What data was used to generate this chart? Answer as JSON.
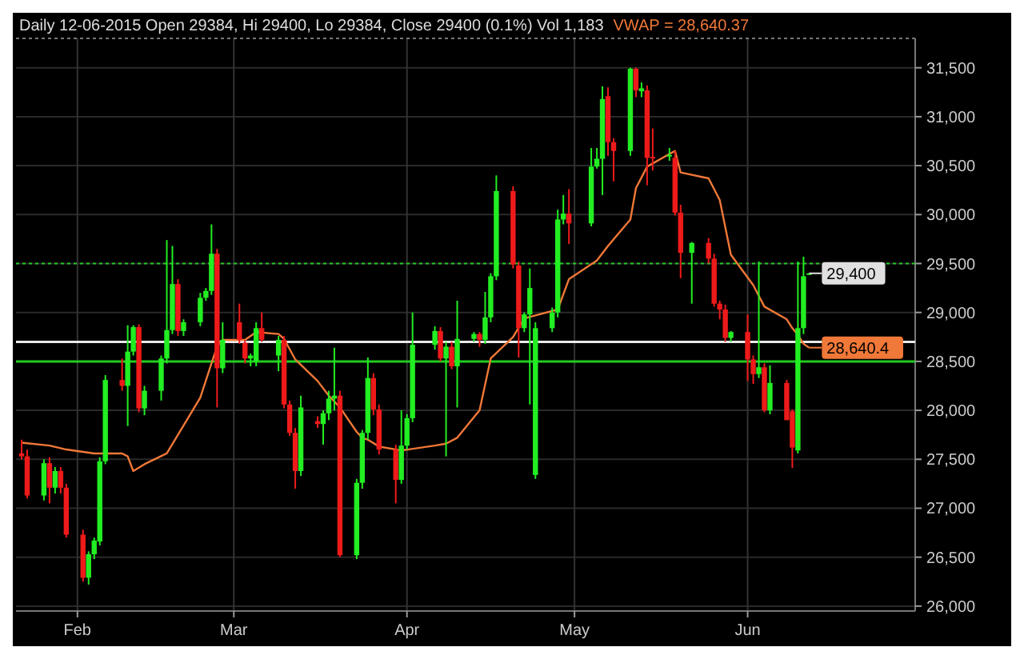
{
  "chart_data": {
    "type": "candlestick",
    "title": "Daily 12-06-2015 Open 29384, Hi 29400, Lo 29384, Close 29400 (0.1%) Vol 1,183",
    "x": [
      "2015-01-22",
      "2015-01-23",
      "2015-01-26",
      "2015-01-27",
      "2015-01-28",
      "2015-01-29",
      "2015-01-30",
      "2015-02-02",
      "2015-02-03",
      "2015-02-04",
      "2015-02-05",
      "2015-02-06",
      "2015-02-09",
      "2015-02-10",
      "2015-02-11",
      "2015-02-12",
      "2015-02-13",
      "2015-02-16",
      "2015-02-17",
      "2015-02-18",
      "2015-02-19",
      "2015-02-20",
      "2015-02-23",
      "2015-02-24",
      "2015-02-25",
      "2015-02-26",
      "2015-02-27",
      "2015-03-02",
      "2015-03-03",
      "2015-03-04",
      "2015-03-05",
      "2015-03-06",
      "2015-03-09",
      "2015-03-10",
      "2015-03-11",
      "2015-03-12",
      "2015-03-13",
      "2015-03-16",
      "2015-03-17",
      "2015-03-18",
      "2015-03-19",
      "2015-03-20",
      "2015-03-23",
      "2015-03-24",
      "2015-03-25",
      "2015-03-26",
      "2015-03-27",
      "2015-03-30",
      "2015-03-31",
      "2015-04-01",
      "2015-04-02",
      "2015-04-06",
      "2015-04-07",
      "2015-04-08",
      "2015-04-09",
      "2015-04-10",
      "2015-04-13",
      "2015-04-14",
      "2015-04-15",
      "2015-04-16",
      "2015-04-17",
      "2015-04-20",
      "2015-04-21",
      "2015-04-22",
      "2015-04-23",
      "2015-04-24",
      "2015-04-27",
      "2015-04-28",
      "2015-04-29",
      "2015-04-30",
      "2015-05-04",
      "2015-05-05",
      "2015-05-06",
      "2015-05-07",
      "2015-05-08",
      "2015-05-11",
      "2015-05-12",
      "2015-05-13",
      "2015-05-14",
      "2015-05-15",
      "2015-05-18",
      "2015-05-19",
      "2015-05-20",
      "2015-05-22",
      "2015-05-25",
      "2015-05-26",
      "2015-05-27",
      "2015-05-28",
      "2015-05-29",
      "2015-06-01",
      "2015-06-02",
      "2015-06-03",
      "2015-06-04",
      "2015-06-05",
      "2015-06-08",
      "2015-06-09",
      "2015-06-10",
      "2015-06-11",
      "2015-06-12"
    ],
    "ohlc": [
      [
        27560,
        27700,
        27500,
        27530
      ],
      [
        27530,
        27600,
        27100,
        27130
      ],
      [
        27130,
        27500,
        27080,
        27460
      ],
      [
        27460,
        27520,
        27050,
        27210
      ],
      [
        27210,
        27420,
        27150,
        27380
      ],
      [
        27380,
        27420,
        27150,
        27210
      ],
      [
        27210,
        27250,
        26700,
        26730
      ],
      [
        26730,
        26780,
        26250,
        26290
      ],
      [
        26290,
        26560,
        26220,
        26530
      ],
      [
        26530,
        26700,
        26480,
        26670
      ],
      [
        26660,
        27520,
        26620,
        27480
      ],
      [
        27480,
        28360,
        27450,
        28310
      ],
      [
        28310,
        28530,
        28200,
        28250
      ],
      [
        28250,
        28870,
        27840,
        28600
      ],
      [
        28600,
        28870,
        28560,
        28850
      ],
      [
        28850,
        28880,
        27980,
        28020
      ],
      [
        28020,
        28250,
        27950,
        28200
      ],
      [
        28200,
        28560,
        28100,
        28530
      ],
      [
        28530,
        29740,
        28480,
        28820
      ],
      [
        28820,
        29680,
        28780,
        29290
      ],
      [
        29290,
        29340,
        28760,
        28810
      ],
      [
        28810,
        28930,
        28760,
        28900
      ],
      [
        28900,
        29200,
        28860,
        29150
      ],
      [
        29150,
        29250,
        29120,
        29220
      ],
      [
        29220,
        29900,
        29180,
        29600
      ],
      [
        29600,
        29650,
        28030,
        28430
      ],
      [
        28430,
        28900,
        28380,
        28720
      ],
      [
        28900,
        29090,
        28680,
        28720
      ],
      [
        28690,
        28720,
        28480,
        28530
      ],
      [
        28530,
        28580,
        28450,
        28560
      ],
      [
        28500,
        28900,
        28450,
        28840
      ],
      [
        28840,
        29000,
        28700,
        28720
      ],
      [
        28560,
        28760,
        28400,
        28720
      ],
      [
        28720,
        28760,
        28020,
        28060
      ],
      [
        28060,
        28100,
        27740,
        27770
      ],
      [
        27770,
        27820,
        27200,
        27380
      ],
      [
        27380,
        28150,
        27330,
        28030
      ],
      [
        27890,
        27940,
        27820,
        27860
      ],
      [
        27860,
        28000,
        27650,
        27970
      ],
      [
        27970,
        28200,
        27900,
        28120
      ],
      [
        28120,
        28640,
        28000,
        28150
      ],
      [
        28150,
        28200,
        26500,
        26520
      ],
      [
        26520,
        27300,
        26480,
        27260
      ],
      [
        27260,
        27800,
        27200,
        27770
      ],
      [
        27770,
        28540,
        27700,
        28330
      ],
      [
        28330,
        28380,
        27950,
        28010
      ],
      [
        28010,
        28060,
        27550,
        27600
      ],
      [
        27600,
        27650,
        27050,
        27290
      ],
      [
        27290,
        28000,
        27250,
        27640
      ],
      [
        27640,
        27960,
        27600,
        27920
      ],
      [
        27920,
        29000,
        27880,
        28670
      ],
      [
        28670,
        28860,
        28620,
        28810
      ],
      [
        28810,
        28850,
        28500,
        28530
      ],
      [
        28530,
        28700,
        27530,
        28650
      ],
      [
        28650,
        28700,
        28420,
        28450
      ],
      [
        28450,
        29120,
        28030,
        28730
      ],
      [
        28730,
        28800,
        28700,
        28780
      ],
      [
        28780,
        28800,
        28650,
        28720
      ],
      [
        28720,
        29210,
        28680,
        28950
      ],
      [
        28950,
        29400,
        28900,
        29370
      ],
      [
        29370,
        30400,
        29330,
        30240
      ],
      [
        30240,
        30290,
        29450,
        29490
      ],
      [
        29480,
        29520,
        28540,
        28840
      ],
      [
        28840,
        29000,
        28800,
        28980
      ],
      [
        28980,
        29450,
        28060,
        29250
      ],
      [
        27340,
        28900,
        27300,
        28840
      ],
      [
        28840,
        29050,
        28800,
        29000
      ],
      [
        29000,
        30050,
        28950,
        29950
      ],
      [
        29950,
        30200,
        29900,
        30010
      ],
      [
        30010,
        30260,
        29700,
        29910
      ],
      [
        29910,
        30680,
        29880,
        30490
      ],
      [
        30490,
        30680,
        30470,
        30570
      ],
      [
        30570,
        31310,
        30200,
        31180
      ],
      [
        31210,
        31300,
        30600,
        30740
      ],
      [
        30740,
        30780,
        30340,
        30650
      ],
      [
        30650,
        31500,
        30600,
        31490
      ],
      [
        31490,
        31500,
        31200,
        31270
      ],
      [
        31260,
        31350,
        31200,
        31290
      ],
      [
        31270,
        31320,
        30300,
        30580
      ],
      [
        30590,
        30880,
        30450,
        30580
      ],
      [
        30600,
        30680,
        30550,
        30610
      ],
      [
        30580,
        30650,
        29990,
        30020
      ],
      [
        30020,
        30100,
        29350,
        29610
      ],
      [
        29610,
        29720,
        29090,
        29710
      ],
      [
        29710,
        29760,
        29500,
        29550
      ],
      [
        29550,
        29600,
        29060,
        29090
      ],
      [
        29090,
        29120,
        28930,
        29030
      ],
      [
        29030,
        29080,
        28700,
        28740
      ],
      [
        28740,
        28810,
        28700,
        28800
      ],
      [
        28800,
        28980,
        28300,
        28520
      ],
      [
        28520,
        28560,
        28270,
        28370
      ],
      [
        28370,
        29520,
        28330,
        28440
      ],
      [
        28440,
        28480,
        27980,
        28000
      ],
      [
        28000,
        28460,
        27960,
        28280
      ],
      [
        28280,
        28310,
        27900,
        27900
      ],
      [
        27990,
        28010,
        27410,
        27620
      ],
      [
        27590,
        29520,
        27560,
        28840
      ],
      [
        28840,
        29570,
        28780,
        29370
      ],
      [
        29384,
        29400,
        29384,
        29400
      ]
    ],
    "series": [
      {
        "type": "line",
        "name": "VWAP = 28,640.37",
        "color": "#f07838",
        "x": [
          "2015-01-22",
          "2015-01-27",
          "2015-01-30",
          "2015-02-04",
          "2015-02-09",
          "2015-02-10",
          "2015-02-11",
          "2015-02-13",
          "2015-02-17",
          "2015-02-19",
          "2015-02-23",
          "2015-02-25",
          "2015-02-26",
          "2015-02-27",
          "2015-03-03",
          "2015-03-05",
          "2015-03-09",
          "2015-03-10",
          "2015-03-12",
          "2015-03-16",
          "2015-03-18",
          "2015-03-20",
          "2015-03-23",
          "2015-03-24",
          "2015-03-25",
          "2015-03-27",
          "2015-03-31",
          "2015-04-06",
          "2015-04-08",
          "2015-04-10",
          "2015-04-14",
          "2015-04-16",
          "2015-04-20",
          "2015-04-22",
          "2015-04-24",
          "2015-04-28",
          "2015-04-30",
          "2015-05-05",
          "2015-05-07",
          "2015-05-11",
          "2015-05-12",
          "2015-05-14",
          "2015-05-18",
          "2015-05-19",
          "2015-05-20",
          "2015-05-25",
          "2015-05-27",
          "2015-05-29",
          "2015-06-02",
          "2015-06-04",
          "2015-06-08",
          "2015-06-09",
          "2015-06-10",
          "2015-06-11",
          "2015-06-12"
        ],
        "values": [
          27670,
          27640,
          27600,
          27560,
          27560,
          27530,
          27380,
          27450,
          27560,
          27750,
          28130,
          28480,
          28650,
          28720,
          28720,
          28800,
          28780,
          28730,
          28520,
          28300,
          28150,
          28030,
          27780,
          27720,
          27700,
          27630,
          27590,
          27640,
          27660,
          27720,
          28000,
          28530,
          28750,
          28940,
          28970,
          29030,
          29340,
          29530,
          29680,
          29950,
          30270,
          30490,
          30620,
          30650,
          30430,
          30370,
          30150,
          29590,
          29280,
          29060,
          28930,
          28840,
          28770,
          28680,
          28640
        ]
      }
    ],
    "xlim": [
      "2015-01-21",
      "2015-07-01"
    ],
    "xticks": [
      {
        "value": "2015-02-01",
        "label": "Feb"
      },
      {
        "value": "2015-03-01",
        "label": "Mar"
      },
      {
        "value": "2015-04-01",
        "label": "Apr"
      },
      {
        "value": "2015-05-01",
        "label": "May"
      },
      {
        "value": "2015-06-01",
        "label": "Jun"
      }
    ],
    "ylim": [
      25950,
      31800
    ],
    "yticks": [
      {
        "value": 26000,
        "label": "26,000"
      },
      {
        "value": 26500,
        "label": "26,500"
      },
      {
        "value": 27000,
        "label": "27,000"
      },
      {
        "value": 27500,
        "label": "27,500"
      },
      {
        "value": 28000,
        "label": "28,000"
      },
      {
        "value": 28500,
        "label": "28,500"
      },
      {
        "value": 29000,
        "label": "29,000"
      },
      {
        "value": 29500,
        "label": "29,500"
      },
      {
        "value": 30000,
        "label": "30,000"
      },
      {
        "value": 30500,
        "label": "30,500"
      },
      {
        "value": 31000,
        "label": "31,000"
      },
      {
        "value": 31500,
        "label": "31,500"
      }
    ],
    "ref_lines": [
      {
        "axis": "y",
        "value": 29500,
        "color": "#22cc22",
        "line_style": "dotted"
      },
      {
        "axis": "y",
        "value": 28700,
        "color": "#e8e8e8",
        "line_style": "solid"
      },
      {
        "axis": "y",
        "value": 28500,
        "color": "#22cc22",
        "line_style": "solid"
      }
    ],
    "annotations": [
      {
        "text": "29,400",
        "x": "2015-06-12",
        "y": 29400
      },
      {
        "text": "28,640.4",
        "x": "2015-06-12",
        "y": 28640.4
      }
    ],
    "grid": true,
    "legend": "top"
  }
}
